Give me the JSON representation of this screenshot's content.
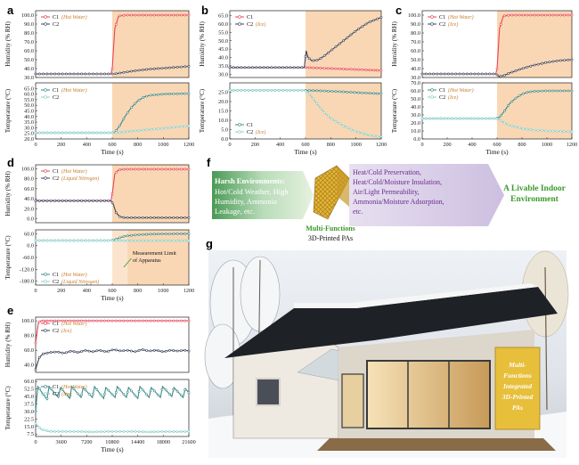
{
  "chart_data": [
    {
      "id": "a",
      "type": "line",
      "top": {
        "ylabel": "Humidity (% RH)",
        "ylim": [
          30,
          105
        ],
        "yticks": [
          "30.0",
          "40.0",
          "50.0",
          "60.0",
          "70.0",
          "80.0",
          "90.0",
          "100.0"
        ],
        "yvals": [
          30,
          40,
          50,
          60,
          70,
          80,
          90,
          100
        ],
        "series": [
          {
            "name": "C1",
            "note": "(Hot Water)",
            "color": "#e8435a",
            "x": [
              0,
              590,
              600,
              620,
              650,
              700,
              1200
            ],
            "y": [
              34,
              34,
              40,
              85,
              99,
              100,
              100
            ]
          },
          {
            "name": "C2",
            "note": "",
            "color": "#3a4358",
            "x": [
              0,
              590,
              620,
              700,
              800,
              900,
              1000,
              1100,
              1200
            ],
            "y": [
              34,
              34,
              34,
              36,
              38,
              39.5,
              40.5,
              41.5,
              42.5
            ]
          }
        ]
      },
      "bottom": {
        "ylabel": "Temperature (°C)",
        "ylim": [
          20,
          70
        ],
        "yticks": [
          "20.0",
          "25.0",
          "30.0",
          "35.0",
          "40.0",
          "45.0",
          "50.0",
          "55.0",
          "60.0",
          "65.0"
        ],
        "yvals": [
          20,
          25,
          30,
          35,
          40,
          45,
          50,
          55,
          60,
          65
        ],
        "series": [
          {
            "name": "C1",
            "note": "(Hot Water)",
            "color": "#3d8a8a",
            "x": [
              0,
              590,
              620,
              660,
              700,
              750,
              800,
              850,
              900,
              1000,
              1200
            ],
            "y": [
              25.5,
              25.5,
              26,
              32,
              40,
              48,
              54,
              57.5,
              59,
              60,
              60.5
            ]
          },
          {
            "name": "C2",
            "note": "",
            "color": "#88d0c8",
            "x": [
              0,
              590,
              620,
              700,
              800,
              900,
              1000,
              1100,
              1200
            ],
            "y": [
              25.5,
              25.5,
              25.5,
              26.3,
              27.5,
              28.5,
              29.5,
              30.5,
              31.5
            ]
          }
        ]
      },
      "xticks": [
        "0",
        "200",
        "400",
        "600",
        "800",
        "1000",
        "1200"
      ],
      "xvals": [
        0,
        200,
        400,
        600,
        800,
        1000,
        1200
      ],
      "xlim": [
        0,
        1200
      ],
      "xlabel": "Time (s)",
      "shade_from": 600
    },
    {
      "id": "b",
      "type": "line",
      "top": {
        "ylabel": "Humidity (% RH)",
        "ylim": [
          28,
          68
        ],
        "yticks": [
          "30.0",
          "35.0",
          "40.0",
          "45.0",
          "50.0",
          "55.0",
          "60.0",
          "65.0"
        ],
        "yvals": [
          30,
          35,
          40,
          45,
          50,
          55,
          60,
          65
        ],
        "series": [
          {
            "name": "C1",
            "note": "",
            "color": "#e8435a",
            "x": [
              0,
              590,
              600,
              700,
              800,
              900,
              1000,
              1100,
              1200
            ],
            "y": [
              34,
              34,
              34,
              33.7,
              33.4,
              33.1,
              32.8,
              32.5,
              32.2
            ]
          },
          {
            "name": "C2",
            "note": "(Ice)",
            "color": "#3a4358",
            "x": [
              0,
              590,
              605,
              620,
              650,
              700,
              750,
              800,
              900,
              1000,
              1100,
              1200
            ],
            "y": [
              34,
              34,
              44,
              40,
              38,
              38.5,
              41,
              44,
              50,
              56,
              61,
              64
            ]
          }
        ]
      },
      "bottom": {
        "ylabel": "Temperature (°C)",
        "ylim": [
          0,
          30
        ],
        "yticks": [
          "0.0",
          "5.0",
          "10.0",
          "15.0",
          "20.0",
          "25.0"
        ],
        "yvals": [
          0,
          5,
          10,
          15,
          20,
          25
        ],
        "series": [
          {
            "name": "C1",
            "note": "",
            "color": "#3d8a8a",
            "x": [
              0,
              590,
              700,
              800,
              900,
              1000,
              1100,
              1200
            ],
            "y": [
              26,
              26,
              25.8,
              25.5,
              25.2,
              24.8,
              24.5,
              24.2
            ]
          },
          {
            "name": "C2",
            "note": "(Ice)",
            "color": "#88d0c8",
            "x": [
              0,
              590,
              620,
              660,
              700,
              750,
              800,
              900,
              1000,
              1100,
              1200
            ],
            "y": [
              26,
              26,
              25,
              21.5,
              18,
              14,
              11,
              7,
              4,
              2,
              1
            ]
          }
        ]
      },
      "xticks": [
        "0",
        "200",
        "400",
        "600",
        "800",
        "1000",
        "1200"
      ],
      "xvals": [
        0,
        200,
        400,
        600,
        800,
        1000,
        1200
      ],
      "xlim": [
        0,
        1200
      ],
      "xlabel": "Time (s)",
      "shade_from": 600
    },
    {
      "id": "c",
      "type": "line",
      "top": {
        "ylabel": "Humidity (% RH)",
        "ylim": [
          30,
          105
        ],
        "yticks": [
          "30.0",
          "40.0",
          "50.0",
          "60.0",
          "70.0",
          "80.0",
          "90.0",
          "100.0"
        ],
        "yvals": [
          30,
          40,
          50,
          60,
          70,
          80,
          90,
          100
        ],
        "series": [
          {
            "name": "C1",
            "note": "(Hot Water)",
            "color": "#e8435a",
            "x": [
              0,
              590,
              600,
              620,
              650,
              700,
              1200
            ],
            "y": [
              34,
              34,
              40,
              85,
              99,
              100,
              100
            ]
          },
          {
            "name": "C2",
            "note": "(Ice)",
            "color": "#3a4358",
            "x": [
              0,
              590,
              620,
              660,
              700,
              800,
              900,
              1000,
              1100,
              1200
            ],
            "y": [
              34,
              34,
              31,
              32.5,
              35,
              40,
              44,
              47,
              49,
              50
            ]
          }
        ]
      },
      "bottom": {
        "ylabel": "Temperature (°C)",
        "ylim": [
          0,
          70
        ],
        "yticks": [
          "0.0",
          "10.0",
          "20.0",
          "30.0",
          "40.0",
          "50.0",
          "60.0",
          "70.0"
        ],
        "yvals": [
          0,
          10,
          20,
          30,
          40,
          50,
          60,
          70
        ],
        "series": [
          {
            "name": "C1",
            "note": "(Hot Water)",
            "color": "#3d8a8a",
            "x": [
              0,
              590,
              620,
              660,
              700,
              750,
              800,
              850,
              900,
              1000,
              1200
            ],
            "y": [
              25.5,
              25.5,
              27,
              35,
              44,
              51,
              56,
              58.5,
              59.5,
              60,
              60
            ]
          },
          {
            "name": "C2",
            "note": "(Ice)",
            "color": "#88d0c8",
            "x": [
              0,
              590,
              620,
              660,
              700,
              800,
              900,
              1000,
              1100,
              1200
            ],
            "y": [
              25.5,
              25.5,
              24,
              20,
              17,
              13,
              11,
              10,
              9.5,
              9
            ]
          }
        ]
      },
      "xticks": [
        "0",
        "200",
        "400",
        "600",
        "800",
        "1000",
        "1200"
      ],
      "xvals": [
        0,
        200,
        400,
        600,
        800,
        1000,
        1200
      ],
      "xlim": [
        0,
        1200
      ],
      "xlabel": "Time (s)",
      "shade_from": 600
    },
    {
      "id": "d",
      "type": "line",
      "top": {
        "ylabel": "Humidity (% RH)",
        "ylim": [
          -8,
          108
        ],
        "yticks": [
          "0.0",
          "20.0",
          "40.0",
          "60.0",
          "80.0",
          "100.0"
        ],
        "yvals": [
          0,
          20,
          40,
          60,
          80,
          100
        ],
        "series": [
          {
            "name": "C1",
            "note": "(Hot Water)",
            "color": "#e8435a",
            "x": [
              0,
              590,
              600,
              620,
              650,
              700,
              1200
            ],
            "y": [
              36,
              36,
              50,
              90,
              98,
              99,
              99
            ]
          },
          {
            "name": "C2",
            "note": "(Liquid Nitrogen)",
            "color": "#3a4358",
            "x": [
              0,
              590,
              610,
              630,
              660,
              700,
              1200
            ],
            "y": [
              36,
              36,
              28,
              12,
              4,
              2,
              2
            ]
          }
        ]
      },
      "bottom": {
        "ylabel": "Temperature (°C)",
        "ylim": [
          -200,
          80
        ],
        "yticks": [
          "-180.0",
          "-120.0",
          "-60.0",
          "0.0",
          "60.0"
        ],
        "yvals": [
          -180,
          -120,
          -60,
          0,
          60
        ],
        "series": [
          {
            "name": "C1",
            "note": "(Hot Water)",
            "color": "#3d8a8a",
            "x": [
              0,
              590,
              620,
              660,
              700,
              800,
              900,
              1000,
              1200
            ],
            "y": [
              26,
              26,
              30,
              40,
              48,
              55,
              58,
              59,
              60
            ]
          },
          {
            "name": "C2",
            "note": "(Liquid Nitrogen)",
            "color": "#88d0c8",
            "x": [
              0,
              590,
              620,
              660,
              700,
              800,
              1200
            ],
            "y": [
              26,
              26,
              25,
              25,
              25,
              25,
              25
            ]
          }
        ]
      },
      "xticks": [
        "0",
        "200",
        "400",
        "600",
        "800",
        "1000",
        "1200"
      ],
      "xvals": [
        0,
        200,
        400,
        600,
        800,
        1000,
        1200
      ],
      "xlim": [
        0,
        1200
      ],
      "xlabel": "Time (s)",
      "shade_from": 600,
      "annotation": "Measurement Limit of Apparatus"
    },
    {
      "id": "e",
      "type": "line",
      "top": {
        "ylabel": "Humidity (% RH)",
        "ylim": [
          30,
          105
        ],
        "yticks": [
          "40.0",
          "60.0",
          "80.0",
          "100.0"
        ],
        "yvals": [
          40,
          60,
          80,
          100
        ],
        "series": [
          {
            "name": "C1",
            "note": "(Hot Water)",
            "color": "#e8435a",
            "x": [
              0,
              400,
              800,
              21600
            ],
            "y": [
              70,
              98,
              100,
              100
            ]
          },
          {
            "name": "C2",
            "note": "(Ice)",
            "color": "#3a4358",
            "x": [
              0,
              500,
              1000,
              2000,
              3000,
              4000,
              5000,
              6000,
              7000,
              8000,
              9000,
              10000,
              11000,
              12000,
              13000,
              14000,
              15000,
              16000,
              17000,
              18000,
              19000,
              20000,
              21000,
              21600
            ],
            "y": [
              34,
              50,
              55,
              57,
              58,
              56,
              59,
              57,
              60,
              58,
              60,
              58,
              61,
              59,
              60,
              58,
              61,
              59,
              60,
              58,
              60,
              59,
              60,
              59
            ]
          }
        ]
      },
      "bottom": {
        "ylabel": "Temperature (°C)",
        "ylim": [
          5,
          62
        ],
        "yticks": [
          "7.5",
          "15.0",
          "22.5",
          "30.0",
          "37.5",
          "45.0",
          "52.5",
          "60.0"
        ],
        "yvals": [
          7.5,
          15,
          22.5,
          30,
          37.5,
          45,
          52.5,
          60
        ],
        "series": [
          {
            "name": "C1",
            "note": "(Hot Water)",
            "color": "#3d8a8a",
            "x": [
              0,
              300,
              1600,
              1900,
              3200,
              3500,
              4800,
              5100,
              6400,
              6700,
              8000,
              8300,
              9600,
              9900,
              11200,
              11500,
              12800,
              13100,
              14400,
              14700,
              16000,
              16300,
              17600,
              17900,
              19200,
              19500,
              20800,
              21100,
              21600
            ],
            "y": [
              30,
              55,
              42,
              55,
              44,
              54,
              43,
              55,
              44,
              54,
              44,
              55,
              43,
              54,
              44,
              55,
              44,
              54,
              43,
              55,
              44,
              54,
              44,
              55,
              45,
              54,
              44,
              53,
              49
            ]
          },
          {
            "name": "C2",
            "note": "(Ice)",
            "color": "#88d0c8",
            "x": [
              0,
              800,
              2000,
              4000,
              6000,
              8000,
              10000,
              12000,
              14000,
              16000,
              18000,
              20000,
              21600
            ],
            "y": [
              18,
              12,
              10,
              10,
              10,
              9.5,
              10,
              10,
              10,
              9.5,
              10,
              9.8,
              10
            ]
          }
        ]
      },
      "xticks": [
        "0",
        "3600",
        "7200",
        "10800",
        "14400",
        "18000",
        "21600"
      ],
      "xvals": [
        0,
        3600,
        7200,
        10800,
        14400,
        18000,
        21600
      ],
      "xlim": [
        0,
        21600
      ],
      "xlabel": "Time (s)",
      "shade_from": null
    }
  ],
  "panel_f": {
    "label": "f",
    "left_title": "Harsh Environments:",
    "left_text": [
      "Hot/Cold Weather, High",
      "Humidity, Ammonia",
      "Leakage, etc."
    ],
    "center_title": "Multi-Functions",
    "center_sub": "3D-Printed PAs",
    "mid_text": [
      "Heat/Cold Preservation,",
      "Heat/Cold/Moisture Insulation,",
      "Air/Light Permeability,",
      "Ammonia/Moisture Adsorption,",
      "etc."
    ],
    "right_text": [
      "A Livable Indoor",
      "Environment"
    ]
  },
  "panel_g": {
    "label": "g",
    "sign_text": [
      "Multi-",
      "Functions",
      "Integrated",
      "3D-Printed",
      "PAs"
    ]
  },
  "colors": {
    "shade": "#f9d7b5",
    "accent_green": "#3b9a2a",
    "purple": "#6b2a8f"
  }
}
